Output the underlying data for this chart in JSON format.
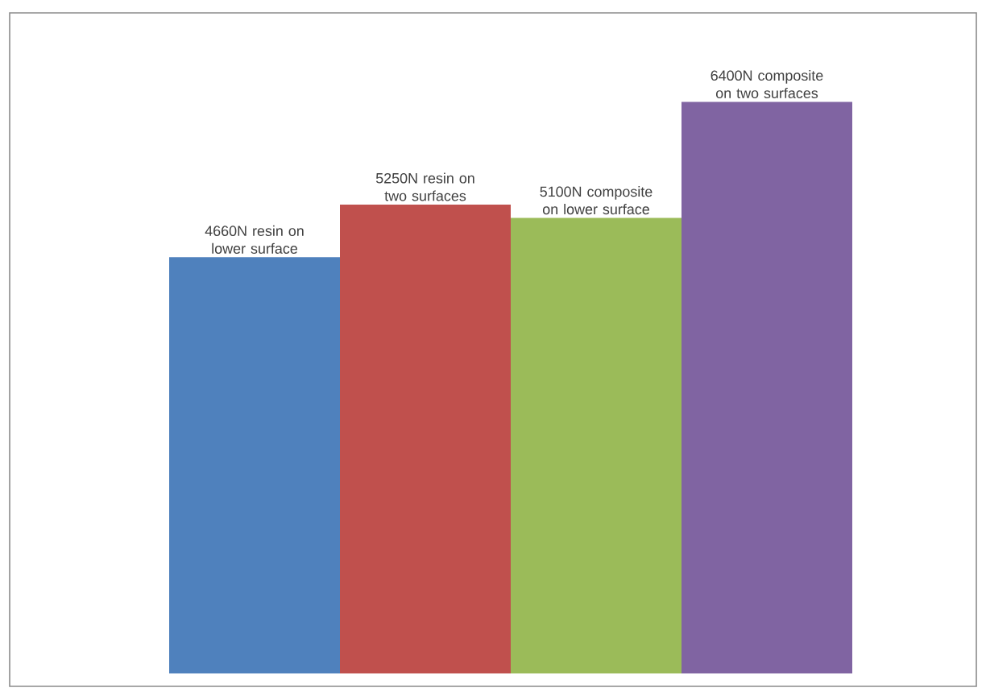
{
  "chart_data": {
    "type": "bar",
    "categories": [
      null,
      null,
      null,
      null
    ],
    "values": [
      4660,
      5250,
      5100,
      6400
    ],
    "colors": [
      "#4f81bd",
      "#c0504d",
      "#9bbb59",
      "#8064a2"
    ],
    "value_labels": [
      "4660N resin on lower surface",
      "5250N resin on two surfaces",
      "5100N composite on lower surface",
      "6400N composite on two surfaces"
    ]
  }
}
